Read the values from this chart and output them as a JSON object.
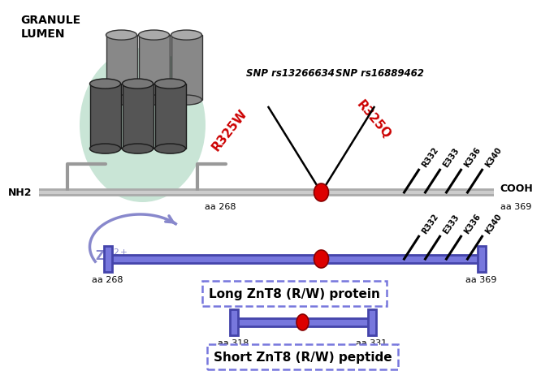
{
  "granule_lumen_text": "GRANULE\nLUMEN",
  "nh2_text": "NH2",
  "cooh_text": "COOH",
  "aa268_membrane": "aa 268",
  "aa369_membrane": "aa 369",
  "snp1_text": "SNP rs13266634",
  "snp2_text": "SNP rs16889462",
  "r325w_text": "R325W",
  "r325q_text": "R325Q",
  "residues": [
    "R332",
    "E333",
    "K336",
    "K340"
  ],
  "long_protein_label": "Long ZnT8 (R/W) protein",
  "short_peptide_label": "Short ZnT8 (R/W) peptide",
  "long_aa_left": "aa 268",
  "long_aa_right": "aa 369",
  "short_aa_left": "aa 318",
  "short_aa_right": "aa 331",
  "bg_color": "#ffffff",
  "membrane_color": "#aaaaaa",
  "long_bar_color": "#7777dd",
  "red_dot_color": "#dd0000",
  "zn_arrow_color": "#8888cc",
  "black": "#000000",
  "red": "#cc0000",
  "glow_color": "#7abf9a"
}
